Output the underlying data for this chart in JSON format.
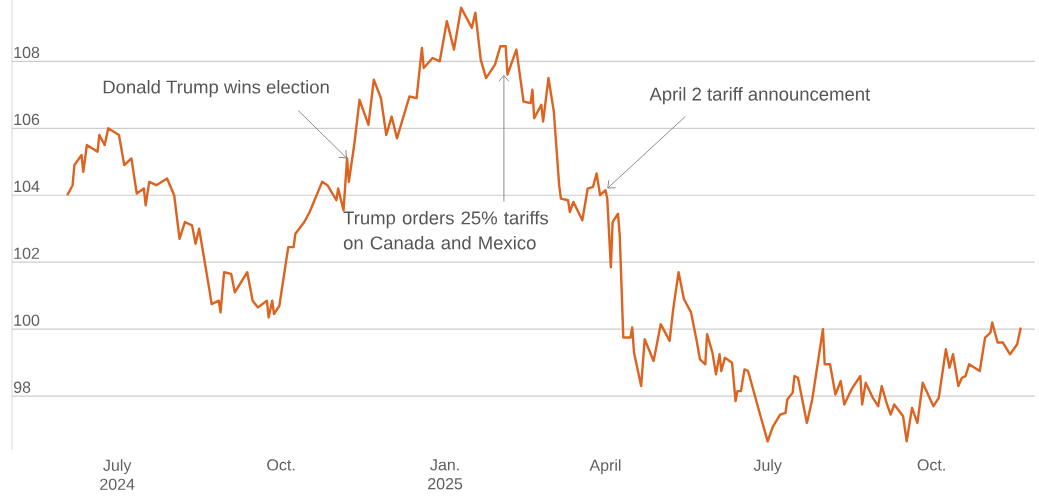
{
  "chart_data": {
    "type": "line",
    "x": [
      "2024-06-03",
      "2024-06-06",
      "2024-06-07",
      "2024-06-11",
      "2024-06-12",
      "2024-06-14",
      "2024-06-20",
      "2024-06-21",
      "2024-06-24",
      "2024-06-26",
      "2024-07-02",
      "2024-07-05",
      "2024-07-09",
      "2024-07-12",
      "2024-07-16",
      "2024-07-17",
      "2024-07-19",
      "2024-07-23",
      "2024-07-29",
      "2024-08-02",
      "2024-08-05",
      "2024-08-08",
      "2024-08-12",
      "2024-08-14",
      "2024-08-16",
      "2024-08-22",
      "2024-08-23",
      "2024-08-27",
      "2024-08-28",
      "2024-08-30",
      "2024-09-03",
      "2024-09-05",
      "2024-09-12",
      "2024-09-15",
      "2024-09-18",
      "2024-09-23",
      "2024-09-24",
      "2024-09-26",
      "2024-09-27",
      "2024-09-30",
      "2024-10-05",
      "2024-10-08",
      "2024-10-09",
      "2024-10-14",
      "2024-10-17",
      "2024-10-24",
      "2024-10-27",
      "2024-11-01",
      "2024-11-02",
      "2024-11-05",
      "2024-11-07",
      "2024-11-08",
      "2024-11-11",
      "2024-11-14",
      "2024-11-19",
      "2024-11-22",
      "2024-11-26",
      "2024-11-29",
      "2024-12-02",
      "2024-12-05",
      "2024-12-12",
      "2024-12-16",
      "2024-12-19",
      "2024-12-20",
      "2024-12-25",
      "2024-12-29",
      "2025-01-02",
      "2025-01-06",
      "2025-01-10",
      "2025-01-16",
      "2025-01-18",
      "2025-01-21",
      "2025-01-24",
      "2025-01-29",
      "2025-02-01",
      "2025-02-04",
      "2025-02-05",
      "2025-02-10",
      "2025-02-14",
      "2025-02-18",
      "2025-02-19",
      "2025-02-20",
      "2025-02-24",
      "2025-02-25",
      "2025-02-28",
      "2025-03-03",
      "2025-03-06",
      "2025-03-07",
      "2025-03-11",
      "2025-03-12",
      "2025-03-14",
      "2025-03-19",
      "2025-03-22",
      "2025-03-25",
      "2025-03-27",
      "2025-03-29",
      "2025-04-01",
      "2025-04-02",
      "2025-04-04",
      "2025-04-05",
      "2025-04-08",
      "2025-04-09",
      "2025-04-11",
      "2025-04-15",
      "2025-04-16",
      "2025-04-17",
      "2025-04-21",
      "2025-04-23",
      "2025-04-28",
      "2025-05-02",
      "2025-05-07",
      "2025-05-09",
      "2025-05-12",
      "2025-05-15",
      "2025-05-19",
      "2025-05-22",
      "2025-05-24",
      "2025-05-27",
      "2025-05-28",
      "2025-05-31",
      "2025-06-02",
      "2025-06-04",
      "2025-06-05",
      "2025-06-07",
      "2025-06-11",
      "2025-06-13",
      "2025-06-14",
      "2025-06-16",
      "2025-06-18",
      "2025-06-20",
      "2025-06-27",
      "2025-07-01",
      "2025-07-04",
      "2025-07-08",
      "2025-07-11",
      "2025-07-12",
      "2025-07-15",
      "2025-07-16",
      "2025-07-18",
      "2025-07-23",
      "2025-07-26",
      "2025-08-01",
      "2025-08-02",
      "2025-08-05",
      "2025-08-08",
      "2025-08-11",
      "2025-08-13",
      "2025-08-17",
      "2025-08-22",
      "2025-08-23",
      "2025-08-25",
      "2025-08-29",
      "2025-09-01",
      "2025-09-03",
      "2025-09-06",
      "2025-09-08",
      "2025-09-10",
      "2025-09-15",
      "2025-09-17",
      "2025-09-20",
      "2025-09-23",
      "2025-09-26",
      "2025-10-02",
      "2025-10-05",
      "2025-10-09",
      "2025-10-11",
      "2025-10-13",
      "2025-10-16",
      "2025-10-18",
      "2025-10-20",
      "2025-10-22",
      "2025-10-28",
      "2025-10-31",
      "2025-11-03",
      "2025-11-04",
      "2025-11-07",
      "2025-11-10",
      "2025-11-14",
      "2025-11-18",
      "2025-11-20"
    ],
    "series": [
      {
        "color": "#dd6320",
        "values": [
          104.0,
          104.3,
          104.9,
          105.2,
          104.7,
          105.5,
          105.3,
          105.8,
          105.5,
          106.0,
          105.8,
          104.9,
          105.1,
          104.05,
          104.2,
          103.7,
          104.4,
          104.3,
          104.5,
          104.0,
          102.7,
          103.2,
          103.1,
          102.55,
          103.0,
          101.1,
          100.75,
          100.85,
          100.5,
          101.7,
          101.65,
          101.1,
          101.7,
          100.85,
          100.65,
          100.85,
          100.35,
          100.85,
          100.45,
          100.7,
          102.45,
          102.45,
          102.85,
          103.2,
          103.5,
          104.4,
          104.3,
          103.85,
          104.2,
          103.55,
          105.1,
          104.4,
          105.5,
          106.85,
          106.1,
          107.45,
          106.9,
          105.8,
          106.35,
          105.7,
          106.95,
          106.9,
          108.4,
          107.8,
          108.1,
          108.0,
          109.2,
          108.35,
          109.6,
          109.0,
          109.45,
          108.05,
          107.5,
          107.9,
          108.45,
          108.45,
          107.6,
          108.35,
          106.8,
          106.75,
          107.15,
          106.3,
          106.7,
          106.2,
          107.5,
          106.5,
          104.3,
          103.9,
          103.85,
          103.5,
          103.8,
          103.25,
          104.2,
          104.25,
          104.65,
          104.0,
          104.15,
          103.9,
          101.85,
          103.2,
          103.45,
          102.8,
          99.75,
          99.75,
          100.05,
          99.3,
          98.3,
          99.7,
          99.05,
          100.15,
          99.65,
          100.6,
          101.7,
          100.9,
          100.5,
          99.7,
          99.1,
          98.95,
          99.85,
          99.3,
          98.65,
          99.25,
          98.75,
          99.15,
          99.0,
          97.85,
          98.15,
          98.15,
          98.8,
          98.75,
          97.4,
          96.65,
          97.1,
          97.45,
          97.5,
          97.9,
          98.1,
          98.6,
          98.55,
          97.2,
          97.9,
          100.0,
          98.95,
          98.95,
          98.05,
          98.45,
          97.75,
          98.2,
          98.6,
          97.75,
          98.4,
          97.95,
          97.7,
          98.3,
          97.75,
          97.45,
          97.75,
          97.4,
          96.65,
          97.65,
          97.2,
          98.4,
          97.7,
          97.95,
          99.4,
          98.85,
          99.25,
          98.3,
          98.55,
          98.6,
          98.95,
          98.75,
          99.75,
          99.9,
          100.2,
          99.6,
          99.6,
          99.25,
          99.55,
          100.05
        ]
      }
    ],
    "xlim": [
      "2024-05-03",
      "2025-11-28"
    ],
    "xticks": [
      {
        "value": "2024-07-01",
        "label": "July 2024"
      },
      {
        "value": "2024-10-01",
        "label": "Oct."
      },
      {
        "value": "2025-01-01",
        "label": "Jan. 2025"
      },
      {
        "value": "2025-04-01",
        "label": "April"
      },
      {
        "value": "2025-07-01",
        "label": "July"
      },
      {
        "value": "2025-10-01",
        "label": "Oct."
      }
    ],
    "ylim": [
      96.4,
      109.9
    ],
    "yticks": [
      98,
      100,
      102,
      104,
      106,
      108
    ],
    "grid": "y",
    "annotations": [
      {
        "text": "Donald Trump wins election",
        "x": "2024-11-07",
        "y": 105.1
      },
      {
        "text": "Trump orders 25% tariffs on Canada and Mexico",
        "x": "2025-02-03",
        "y": 107.6
      },
      {
        "text": "April 2 tariff announcement",
        "x": "2025-04-02",
        "y": 104.2
      }
    ]
  }
}
